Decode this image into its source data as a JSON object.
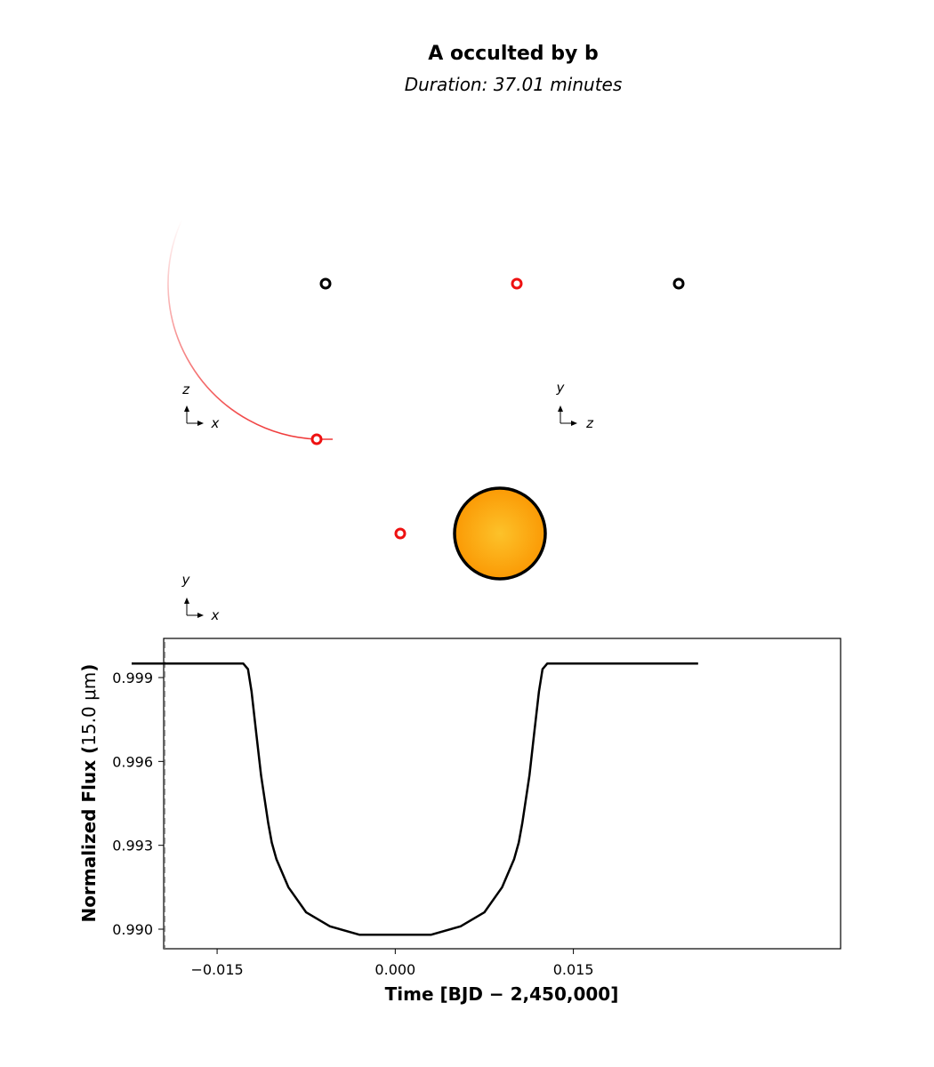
{
  "figure": {
    "title": "A occulted by b",
    "subtitle": "Duration: 37.01 minutes"
  },
  "orbit_views": {
    "xz": {
      "axis_vertical": "z",
      "axis_horizontal": "x"
    },
    "zy": {
      "axis_vertical": "y",
      "axis_horizontal": "z"
    },
    "xy": {
      "axis_vertical": "y",
      "axis_horizontal": "x"
    }
  },
  "colors": {
    "star_center": "#fcc22a",
    "star_edge": "#fb9a05",
    "planet_ring": "#ee1111",
    "trail": "#ee2222",
    "curve": "#000000",
    "marker_line": "#777777"
  },
  "chart_data": {
    "type": "line",
    "xlabel": "Time [BJD − 2,450,000]",
    "ylabel_bold": "Normalized Flux (",
    "ylabel_math": "15.0 μm",
    "ylabel_close": ")",
    "xlim": [
      -0.0195,
      0.0375
    ],
    "ylim": [
      0.9893,
      1.0004
    ],
    "xticks": [
      -0.015,
      0.0,
      0.015
    ],
    "xtick_labels": [
      "−0.015",
      "0.000",
      "0.015"
    ],
    "yticks": [
      0.999,
      0.996,
      0.993,
      0.99
    ],
    "ytick_labels": [
      "0.999",
      "0.996",
      "0.993",
      "0.990"
    ],
    "marker_x": -0.0223,
    "series": [
      {
        "x": [
          -0.0222,
          -0.015,
          -0.0128,
          -0.0124,
          -0.0121,
          -0.0117,
          -0.0113,
          -0.0107,
          -0.0104,
          -0.01,
          -0.009,
          -0.0075,
          -0.0055,
          -0.003,
          0.0,
          0.003,
          0.0055,
          0.0075,
          0.009,
          0.01,
          0.0104,
          0.0107,
          0.0113,
          0.0117,
          0.0121,
          0.0124,
          0.0128,
          0.015,
          0.0255
        ],
        "y": [
          0.9995,
          0.9995,
          0.9995,
          0.9993,
          0.9985,
          0.997,
          0.9955,
          0.9938,
          0.9931,
          0.9925,
          0.9915,
          0.9906,
          0.9901,
          0.9898,
          0.9898,
          0.9898,
          0.9901,
          0.9906,
          0.9915,
          0.9925,
          0.9931,
          0.9938,
          0.9955,
          0.997,
          0.9985,
          0.9993,
          0.9995,
          0.9995,
          0.9995
        ]
      }
    ]
  }
}
